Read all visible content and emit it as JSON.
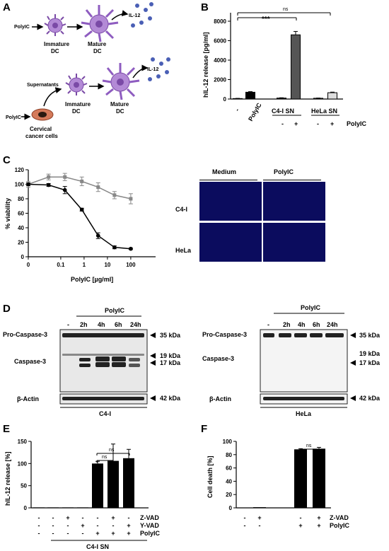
{
  "panels": {
    "A": "A",
    "B": "B",
    "C": "C",
    "D": "D",
    "E": "E",
    "F": "F"
  },
  "panelA": {
    "top": {
      "stimulus": "PolyIC",
      "immature": "Immature",
      "immature2": "DC",
      "mature": "Mature",
      "mature2": "DC",
      "cytokine": "IL-12"
    },
    "bottom": {
      "stimulus": "PolyIC",
      "supernatants": "Supernatants",
      "cancer1": "Cervical",
      "cancer2": "cancer cells",
      "immature": "Immature",
      "immature2": "DC",
      "mature": "Mature",
      "mature2": "DC",
      "cytokine": "IL-12"
    }
  },
  "panelB": {
    "ylabel": "hIL-12 release [pg/ml]",
    "yticks": [
      "0",
      "2000",
      "4000",
      "6000",
      "8000"
    ],
    "groups": [
      "PolyIC",
      "C4-I SN",
      "HeLa SN"
    ],
    "minus_label": "-",
    "signs": [
      "-",
      "+",
      "-",
      "+"
    ],
    "polyic_label": "PolyIC",
    "sig_star": "***",
    "sig_ns": "ns",
    "chart_data": {
      "type": "bar",
      "categories": [
        "-",
        "PolyIC",
        "C4-I SN -",
        "C4-I SN +",
        "HeLa SN -",
        "HeLa SN +"
      ],
      "values": [
        50,
        700,
        100,
        6600,
        80,
        650
      ],
      "errors": [
        20,
        60,
        30,
        350,
        20,
        60
      ],
      "colors": [
        "#000000",
        "#000000",
        "#333333",
        "#555555",
        "#aaaaaa",
        "#dddddd"
      ],
      "ylim": [
        0,
        8000
      ]
    }
  },
  "panelC": {
    "ylabel": "% viability",
    "xlabel": "PolyIC [µg/ml]",
    "yticks": [
      "0",
      "20",
      "40",
      "60",
      "80",
      "100",
      "120"
    ],
    "xticks": [
      "0",
      "0.1",
      "1",
      "10",
      "100"
    ],
    "chart_data": {
      "type": "line",
      "series": [
        {
          "x": [
            0,
            0.03,
            0.15,
            0.8,
            4,
            20,
            100
          ],
          "y": [
            100,
            110,
            110,
            104,
            96,
            85,
            80
          ],
          "err": [
            4,
            4,
            5,
            6,
            6,
            5,
            7
          ],
          "color": "#888888"
        },
        {
          "x": [
            0,
            0.03,
            0.15,
            0.8,
            4,
            20,
            100
          ],
          "y": [
            100,
            99,
            92,
            65,
            29,
            13,
            11
          ],
          "err": [
            2,
            2,
            5,
            2,
            4,
            2,
            1
          ],
          "color": "#000000"
        }
      ],
      "ylim": [
        0,
        120
      ]
    },
    "micro": {
      "col1": "Medium",
      "col2": "PolyIC",
      "row1": "C4-I",
      "row2": "HeLa"
    }
  },
  "panelD": {
    "left": {
      "treat": "PolyIC",
      "lanes": [
        "-",
        "2h",
        "4h",
        "6h",
        "24h"
      ],
      "pro": "Pro-Caspase-3",
      "casp": "Caspase-3",
      "actin": "β-Actin",
      "cell": "C4-I"
    },
    "right": {
      "treat": "PolyIC",
      "lanes": [
        "-",
        "2h",
        "4h",
        "6h",
        "24h"
      ],
      "pro": "Pro-Caspase-3",
      "casp": "Caspase-3",
      "actin": "β-Actin",
      "cell": "HeLa"
    },
    "kda": [
      "35 kDa",
      "19 kDa",
      "17 kDa",
      "42 kDa"
    ]
  },
  "panelE": {
    "ylabel": "hIL-12 release [%]",
    "yticks": [
      "0",
      "50",
      "100",
      "150"
    ],
    "rows": [
      {
        "signs": [
          "-",
          "-",
          "+",
          "-",
          "-",
          "+",
          "-"
        ],
        "label": "Z-VAD"
      },
      {
        "signs": [
          "-",
          "-",
          "-",
          "+",
          "-",
          "-",
          "+"
        ],
        "label": "Y-VAD"
      },
      {
        "signs": [
          "-",
          "-",
          "-",
          "-",
          "+",
          "+",
          "+"
        ],
        "label": "PolyIC"
      }
    ],
    "group": "C4-I SN",
    "sig": [
      "ns",
      "ns"
    ],
    "chart_data": {
      "type": "bar",
      "values": [
        1,
        1,
        1,
        1,
        100,
        106,
        112
      ],
      "errors": [
        0,
        0,
        0,
        0,
        5,
        38,
        20
      ],
      "ylim": [
        0,
        150
      ]
    }
  },
  "panelF": {
    "ylabel": "Cell death [%]",
    "yticks": [
      "0",
      "20",
      "40",
      "60",
      "80",
      "100"
    ],
    "rows": [
      {
        "signs": [
          "-",
          "+",
          "-",
          "+"
        ],
        "label": "Z-VAD"
      },
      {
        "signs": [
          "-",
          "-",
          "+",
          "+"
        ],
        "label": "PolyIC"
      }
    ],
    "sig": "ns",
    "chart_data": {
      "type": "bar",
      "values": [
        0.5,
        1,
        88,
        89
      ],
      "errors": [
        0,
        0,
        1,
        2
      ],
      "ylim": [
        0,
        100
      ]
    }
  }
}
